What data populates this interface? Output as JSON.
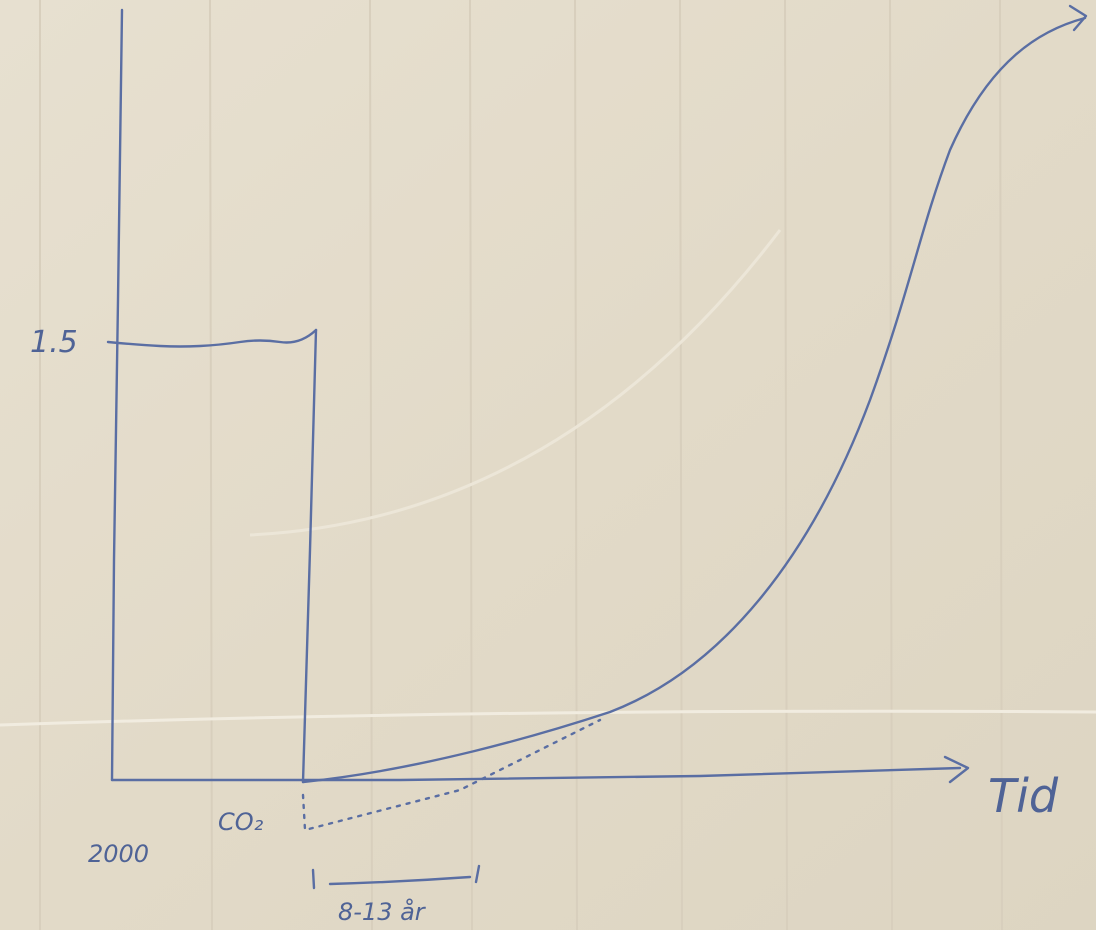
{
  "labels": {
    "y_value": "1.5",
    "x_start": "2000",
    "marker": "CO₂",
    "interval": "8-13 år",
    "x_axis": "Tid"
  }
}
